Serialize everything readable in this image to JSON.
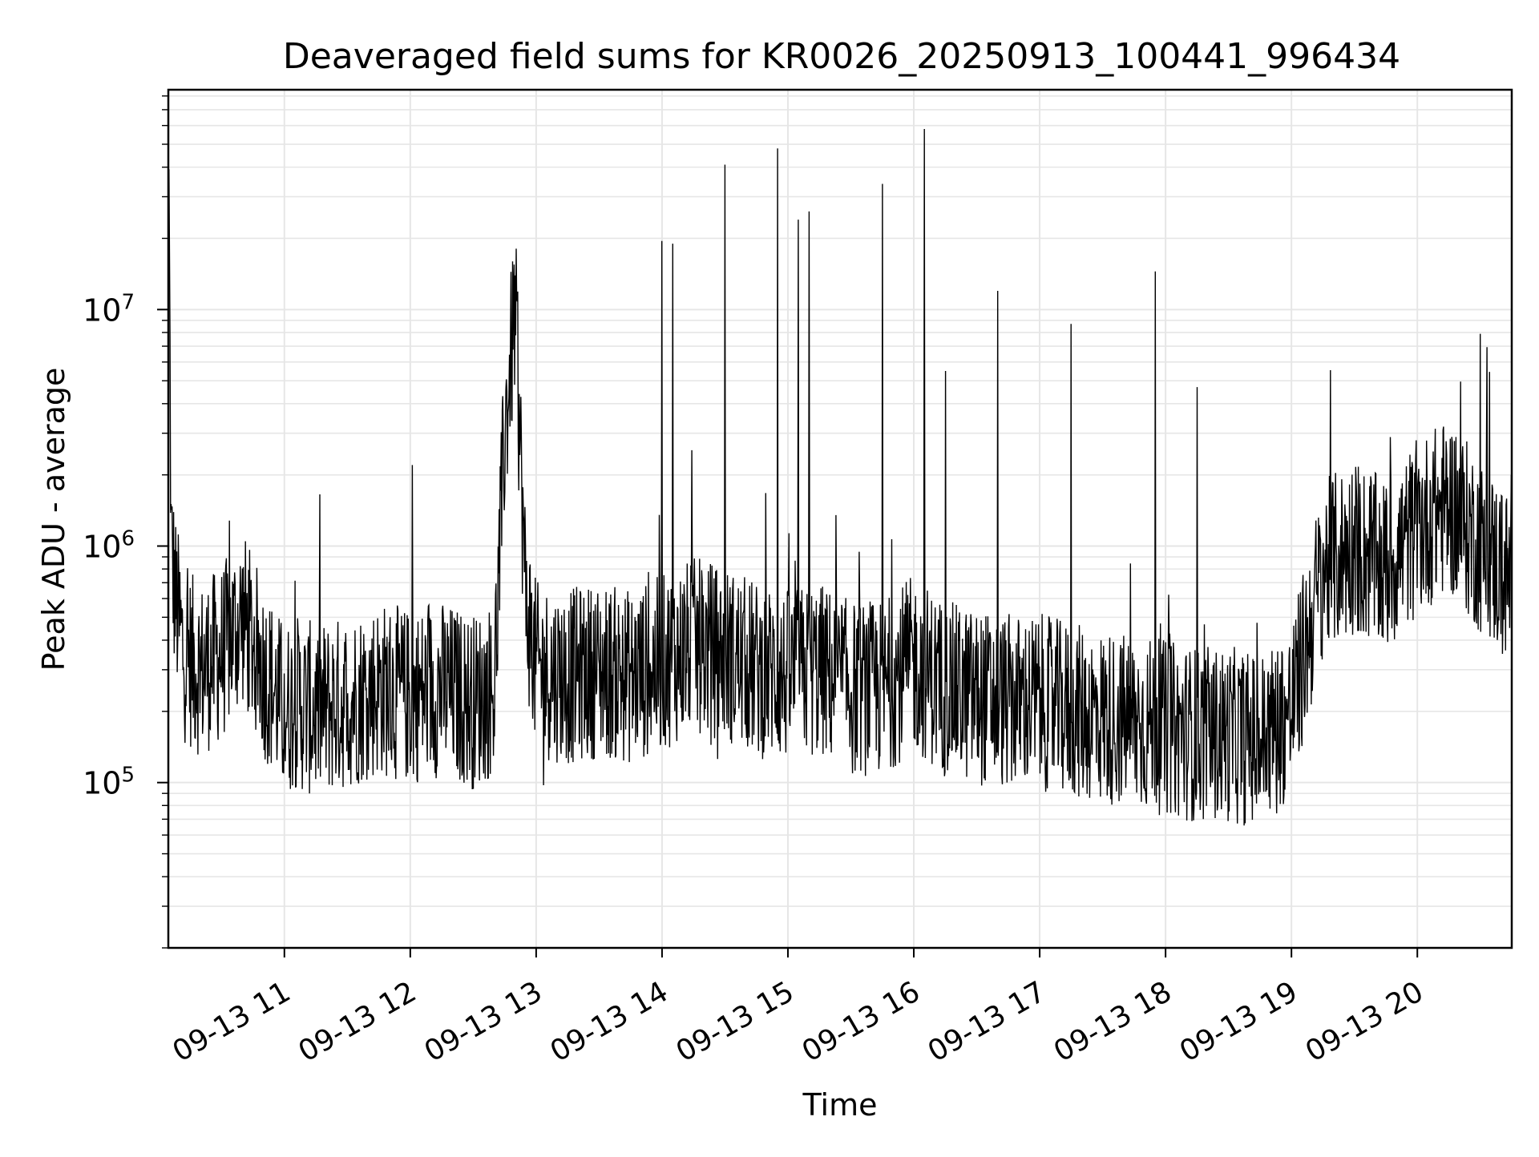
{
  "chart_data": {
    "type": "line",
    "title": "Deaveraged field sums for KR0026_20250913_100441_996434",
    "xlabel": "Time",
    "ylabel": "Peak ADU - average",
    "yscale": "log",
    "grid": true,
    "line_color": "#000000",
    "grid_color": "#e6e6e6",
    "x_range": [
      "2025-09-13 10:04:41",
      "2025-09-13 20:45"
    ],
    "ylim": [
      20000,
      85000000
    ],
    "x_ticks": [
      {
        "time": "2025-09-13 11:00",
        "label": "09-13 11"
      },
      {
        "time": "2025-09-13 12:00",
        "label": "09-13 12"
      },
      {
        "time": "2025-09-13 13:00",
        "label": "09-13 13"
      },
      {
        "time": "2025-09-13 14:00",
        "label": "09-13 14"
      },
      {
        "time": "2025-09-13 15:00",
        "label": "09-13 15"
      },
      {
        "time": "2025-09-13 16:00",
        "label": "09-13 16"
      },
      {
        "time": "2025-09-13 17:00",
        "label": "09-13 17"
      },
      {
        "time": "2025-09-13 18:00",
        "label": "09-13 18"
      },
      {
        "time": "2025-09-13 19:00",
        "label": "09-13 19"
      },
      {
        "time": "2025-09-13 20:00",
        "label": "09-13 20"
      }
    ],
    "y_ticks": [
      {
        "value": 100000,
        "base": "10",
        "exp": "5"
      },
      {
        "value": 1000000,
        "base": "10",
        "exp": "6"
      },
      {
        "value": 10000000,
        "base": "10",
        "exp": "7"
      }
    ],
    "series": [
      {
        "x": [
          "2025-09-13 10:05",
          "2025-09-13 10:06",
          "2025-09-13 10:08",
          "2025-09-13 10:12",
          "2025-09-13 10:20",
          "2025-09-13 10:30",
          "2025-09-13 10:40",
          "2025-09-13 10:50",
          "2025-09-13 11:00",
          "2025-09-13 11:05",
          "2025-09-13 11:15",
          "2025-09-13 11:30",
          "2025-09-13 11:45",
          "2025-09-13 12:00",
          "2025-09-13 12:15",
          "2025-09-13 12:30",
          "2025-09-13 12:40",
          "2025-09-13 12:45",
          "2025-09-13 12:50",
          "2025-09-13 12:55",
          "2025-09-13 13:00",
          "2025-09-13 13:15",
          "2025-09-13 13:30",
          "2025-09-13 13:45",
          "2025-09-13 14:00",
          "2025-09-13 14:15",
          "2025-09-13 14:30",
          "2025-09-13 14:45",
          "2025-09-13 15:00",
          "2025-09-13 15:15",
          "2025-09-13 15:30",
          "2025-09-13 15:45",
          "2025-09-13 16:00",
          "2025-09-13 16:15",
          "2025-09-13 16:30",
          "2025-09-13 16:45",
          "2025-09-13 17:00",
          "2025-09-13 17:15",
          "2025-09-13 17:30",
          "2025-09-13 17:45",
          "2025-09-13 18:00",
          "2025-09-13 18:15",
          "2025-09-13 18:30",
          "2025-09-13 18:45",
          "2025-09-13 19:00",
          "2025-09-13 19:15",
          "2025-09-13 19:30",
          "2025-09-13 19:45",
          "2025-09-13 20:00",
          "2025-09-13 20:15",
          "2025-09-13 20:30",
          "2025-09-13 20:45"
        ],
        "y": [
          30000000,
          1000000,
          600000,
          350000,
          300000,
          350000,
          500000,
          300000,
          200000,
          220000,
          200000,
          220000,
          250000,
          230000,
          250000,
          220000,
          250000,
          3000000,
          10000000,
          600000,
          300000,
          280000,
          300000,
          280000,
          320000,
          380000,
          350000,
          300000,
          280000,
          300000,
          250000,
          250000,
          320000,
          250000,
          230000,
          220000,
          220000,
          200000,
          190000,
          180000,
          170000,
          160000,
          160000,
          150000,
          200000,
          800000,
          1000000,
          800000,
          1200000,
          1500000,
          1000000,
          700000
        ]
      }
    ],
    "spikes": [
      {
        "time": "2025-09-13 12:01",
        "value": 2200000
      },
      {
        "time": "2025-09-13 14:00",
        "value": 19500000
      },
      {
        "time": "2025-09-13 14:05",
        "value": 19000000
      },
      {
        "time": "2025-09-13 14:30",
        "value": 41000000
      },
      {
        "time": "2025-09-13 14:55",
        "value": 48000000
      },
      {
        "time": "2025-09-13 15:05",
        "value": 24000000
      },
      {
        "time": "2025-09-13 15:10",
        "value": 26000000
      },
      {
        "time": "2025-09-13 15:45",
        "value": 34000000
      },
      {
        "time": "2025-09-13 16:05",
        "value": 58000000
      },
      {
        "time": "2025-09-13 16:15",
        "value": 5500000
      },
      {
        "time": "2025-09-13 16:40",
        "value": 12000000
      },
      {
        "time": "2025-09-13 17:15",
        "value": 8700000
      },
      {
        "time": "2025-09-13 17:55",
        "value": 14500000
      },
      {
        "time": "2025-09-13 18:15",
        "value": 4700000
      },
      {
        "time": "2025-09-13 20:30",
        "value": 7900000
      }
    ]
  }
}
